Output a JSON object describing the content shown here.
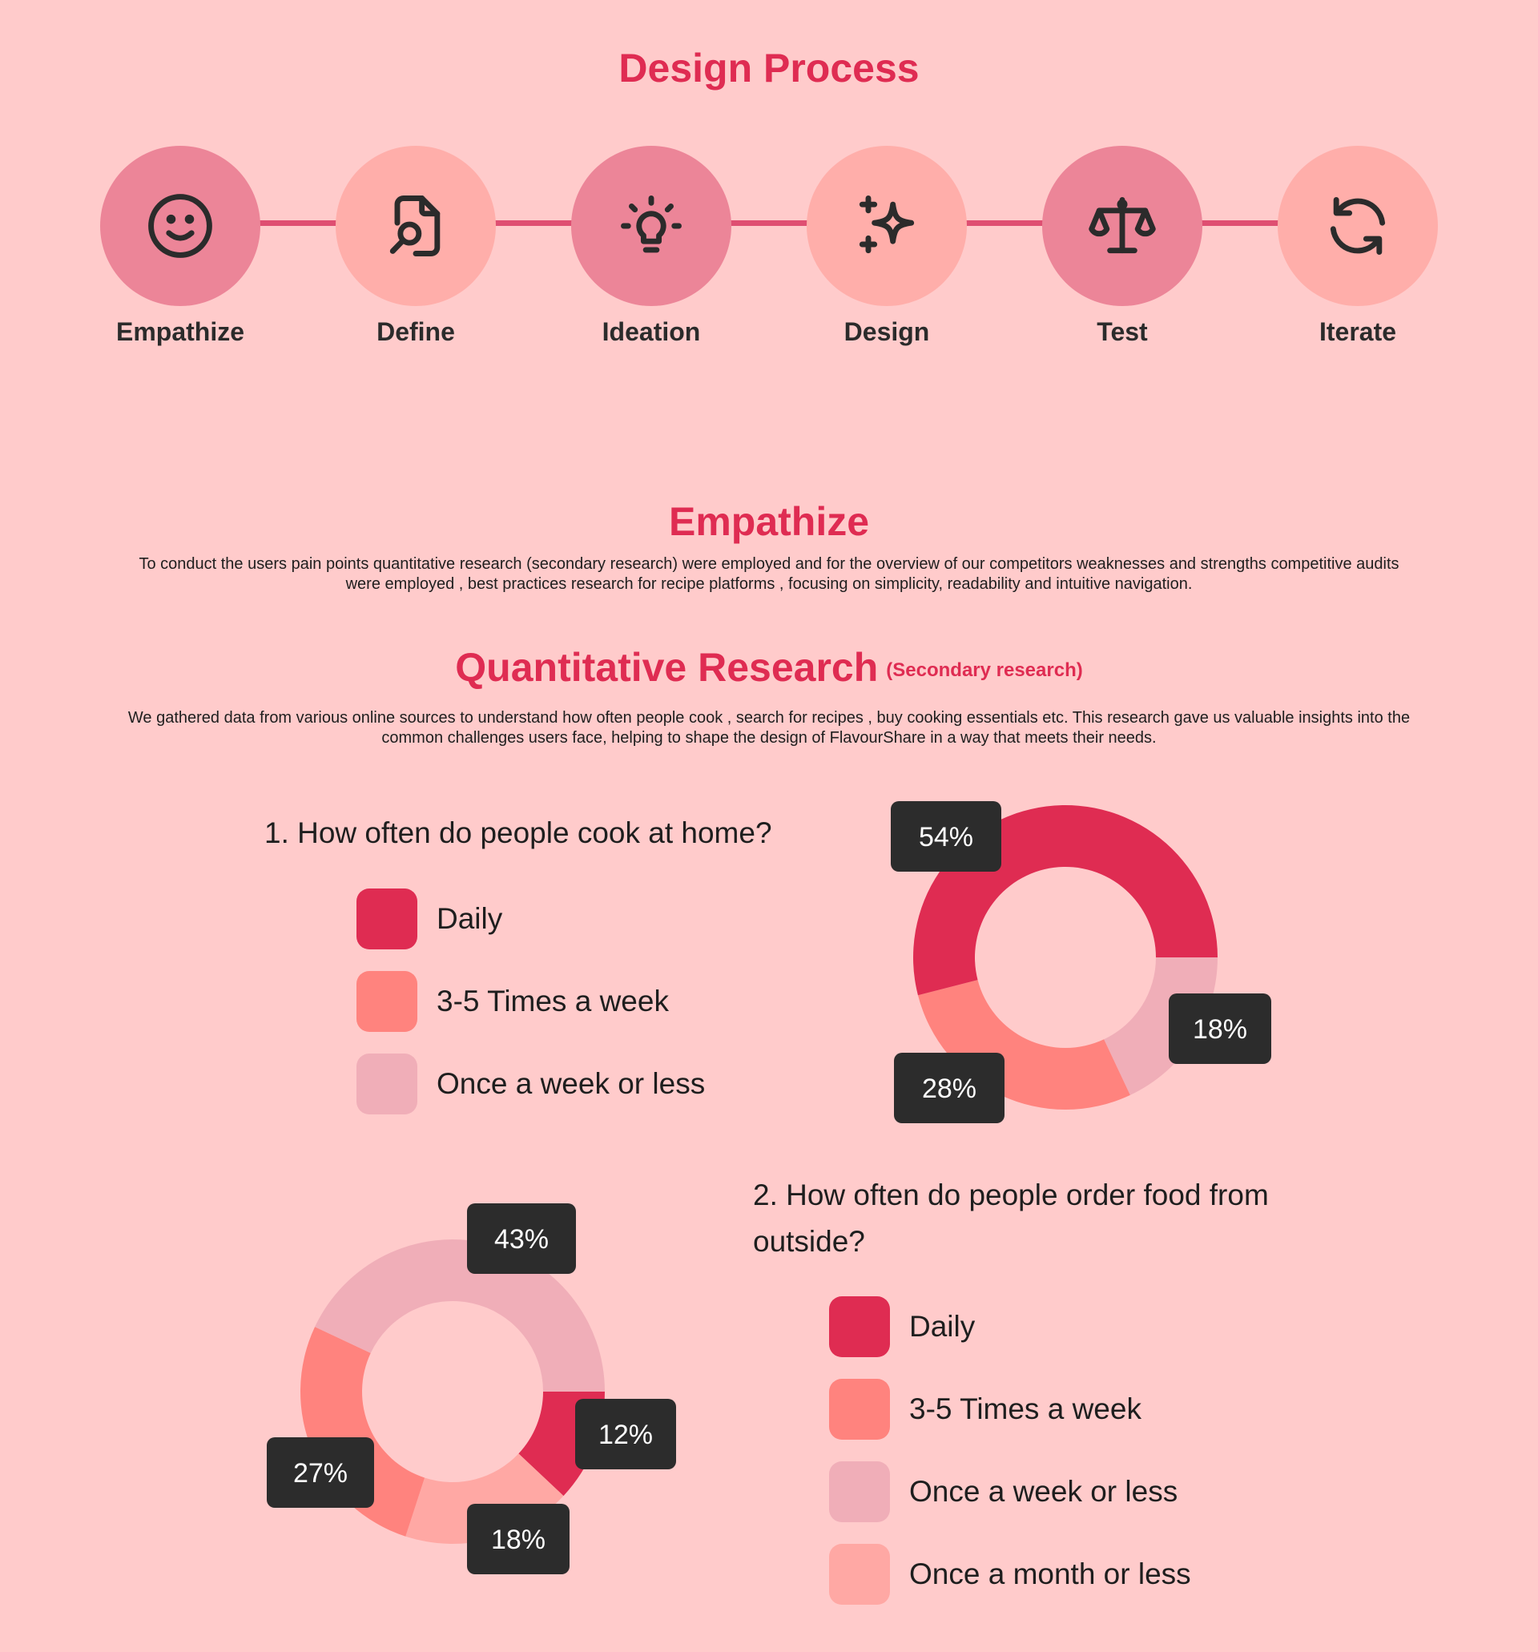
{
  "process": {
    "title": "Design Process",
    "steps": [
      {
        "label": "Empathize",
        "icon": "smiley-icon",
        "tone": "dark"
      },
      {
        "label": "Define",
        "icon": "file-search-icon",
        "tone": "light"
      },
      {
        "label": "Ideation",
        "icon": "lightbulb-icon",
        "tone": "dark"
      },
      {
        "label": "Design",
        "icon": "sparkles-icon",
        "tone": "light"
      },
      {
        "label": "Test",
        "icon": "scale-icon",
        "tone": "dark"
      },
      {
        "label": "Iterate",
        "icon": "refresh-icon",
        "tone": "light"
      }
    ]
  },
  "empathize": {
    "title": "Empathize",
    "text": "To conduct the users pain points quantitative research (secondary research) were employed and for the overview of our competitors weaknesses and strengths competitive audits were employed , best practices research for recipe platforms , focusing on simplicity,  readability and intuitive navigation."
  },
  "quant": {
    "title": "Quantitative Research",
    "subtitle": "(Secondary research)",
    "text": "We gathered data from various online sources to understand how often people cook , search for recipes , buy cooking essentials etc. This research gave us valuable insights into the common challenges users face, helping to shape the design of FlavourShare in a way that meets their needs."
  },
  "colors": {
    "background": "#ffcbcb",
    "accent": "#df2c52",
    "salmon": "#ff837e",
    "light_pink": "#f0aeb8",
    "peach": "#ffa8a4",
    "tag": "#2c2c2c"
  },
  "chart_data": [
    {
      "type": "pie",
      "title": "1. How often do people cook at home?",
      "categories": [
        "Daily",
        "3-5 Times a week",
        "Once a week or less"
      ],
      "values": [
        54,
        28,
        18
      ],
      "labels": [
        "54%",
        "28%",
        "18%"
      ],
      "colors": [
        "#df2c52",
        "#ff837e",
        "#f0aeb8"
      ],
      "legend": "left"
    },
    {
      "type": "pie",
      "title": "2. How often do people order food from outside?",
      "categories": [
        "Daily",
        "3-5 Times a week",
        "Once a week or less",
        "Once a month or less"
      ],
      "values": [
        12,
        27,
        43,
        18
      ],
      "labels": [
        "12%",
        "27%",
        "43%",
        "18%"
      ],
      "colors": [
        "#df2c52",
        "#ff837e",
        "#f0aeb8",
        "#ffa8a4"
      ],
      "legend": "right"
    }
  ]
}
